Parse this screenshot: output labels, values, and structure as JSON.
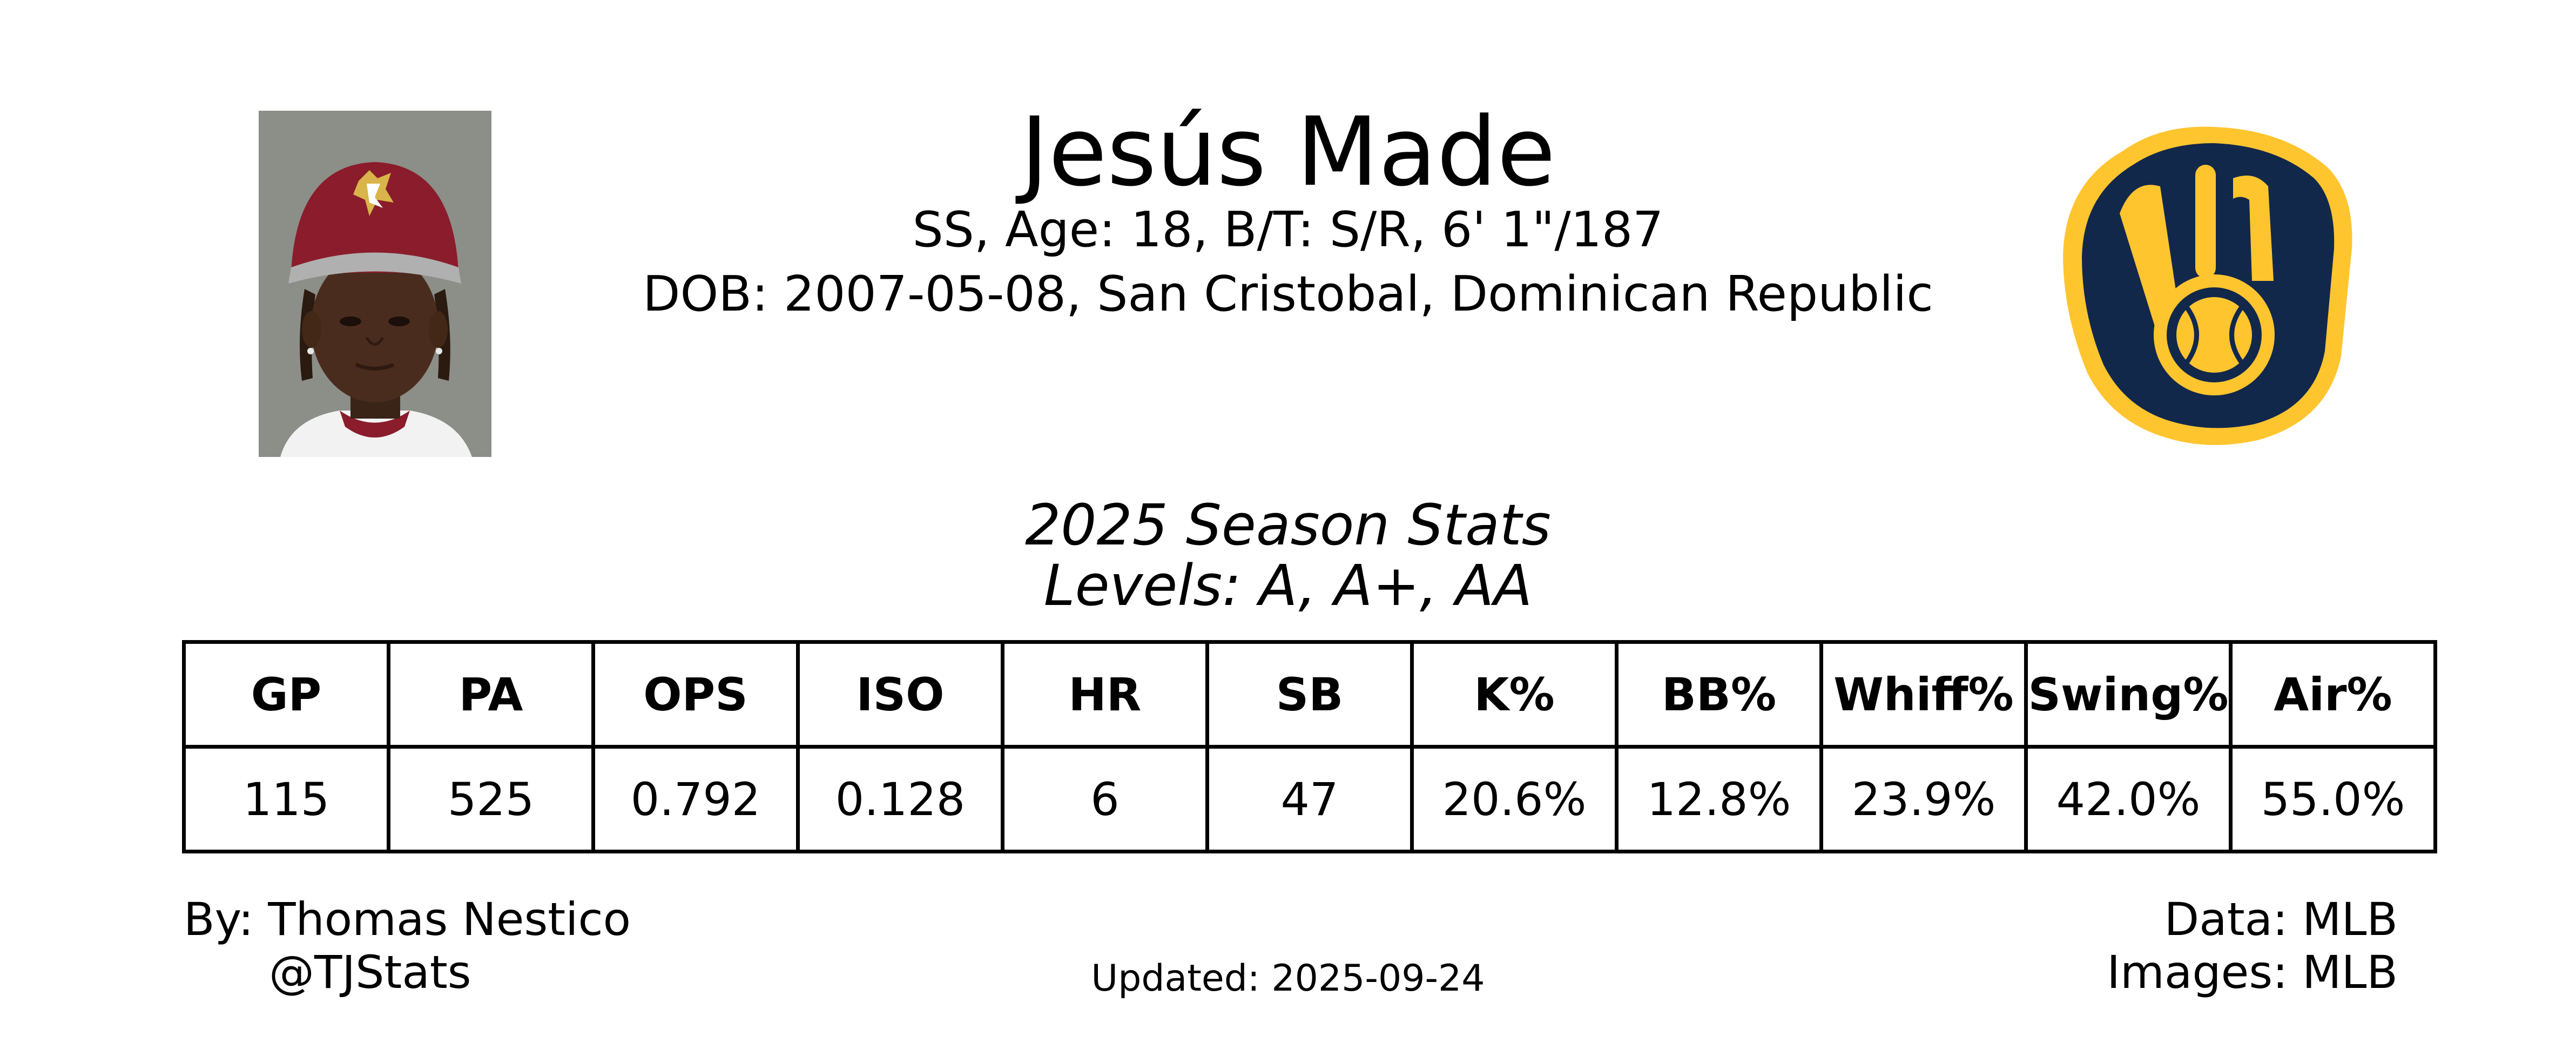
{
  "player": {
    "name": "Jesús Made",
    "bio_line_1": "SS, Age: 18, B/T: S/R, 6' 1\"/187",
    "bio_line_2": "DOB: 2007-05-08, San Cristobal, Dominican Republic"
  },
  "season": {
    "title": "2025 Season Stats",
    "levels": "Levels: A, A+, AA"
  },
  "stats_table": {
    "headers": [
      "GP",
      "PA",
      "OPS",
      "ISO",
      "HR",
      "SB",
      "K%",
      "BB%",
      "Whiff%",
      "Swing%",
      "Air%"
    ],
    "values": [
      "115",
      "525",
      "0.792",
      "0.128",
      "6",
      "47",
      "20.6%",
      "12.8%",
      "23.9%",
      "42.0%",
      "55.0%"
    ]
  },
  "footer": {
    "by": "By: Thomas Nestico",
    "handle": "@TJStats",
    "updated": "Updated: 2025-09-24",
    "data_source": "Data: MLB",
    "images_source": "Images: MLB"
  },
  "colors": {
    "logo_navy": "#12284B",
    "logo_gold": "#FFC52F",
    "photo_background": "#8C8E88",
    "cap_red": "#8A1C2B"
  },
  "icons": {
    "team_logo": "milwaukee-brewers-ball-in-glove-logo",
    "player_photo": "player-headshot"
  }
}
